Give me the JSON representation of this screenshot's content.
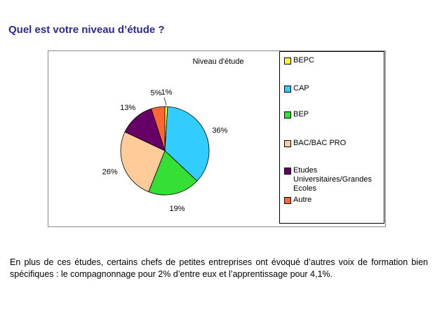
{
  "page": {
    "title": "Quel est votre niveau d’étude ?",
    "paragraph": "En plus de ces études, certains chefs de petites entreprises ont évoqué d’autres voix de formation bien spécifiques : le compagnonnage pour 2% d’entre eux et l’apprentissage pour 4,1%."
  },
  "chart_data": {
    "type": "pie",
    "title": "Niveau d'étude",
    "legend_position": "right",
    "slices": [
      {
        "label": "BEPC",
        "value": 1,
        "value_label": "1%",
        "color": "#ffff33"
      },
      {
        "label": "CAP",
        "value": 36,
        "value_label": "36%",
        "color": "#33ccff"
      },
      {
        "label": "BEP",
        "value": 19,
        "value_label": "19%",
        "color": "#33e033"
      },
      {
        "label": "BAC/BAC PRO",
        "value": 26,
        "value_label": "26%",
        "color": "#ffcc99"
      },
      {
        "label": "Etudes Universitaires/Grandes Ecoles",
        "value": 13,
        "value_label": "13%",
        "color": "#660066"
      },
      {
        "label": "Autre",
        "value": 5,
        "value_label": "5%",
        "color": "#ff6633"
      }
    ]
  }
}
